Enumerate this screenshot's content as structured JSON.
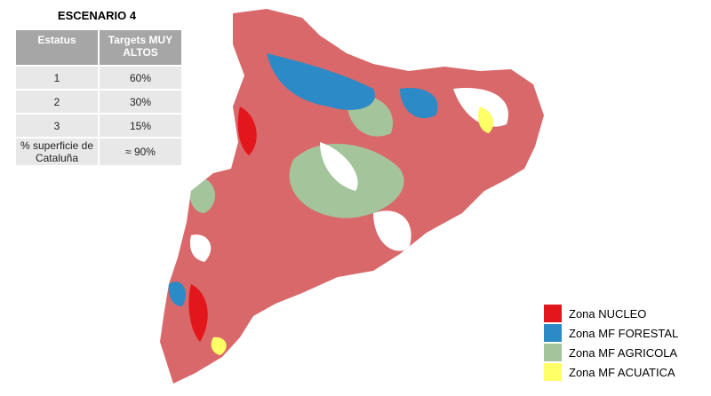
{
  "header": {
    "title": "ESCENARIO 4"
  },
  "table": {
    "columns": [
      "Estatus",
      "Targets MUY ALTOS"
    ],
    "rows": [
      [
        "1",
        "60%"
      ],
      [
        "2",
        "30%"
      ],
      [
        "3",
        "15%"
      ],
      [
        "% superficie de Cataluña",
        "≈ 90%"
      ]
    ]
  },
  "legend": {
    "items": [
      {
        "label": "Zona NUCLEO",
        "color": "#e3161b"
      },
      {
        "label": "Zona MF FORESTAL",
        "color": "#2c8bc6"
      },
      {
        "label": "Zona MF AGRICOLA",
        "color": "#a4c49b"
      },
      {
        "label": "Zona MF ACUATICA",
        "color": "#ffff66"
      }
    ]
  }
}
